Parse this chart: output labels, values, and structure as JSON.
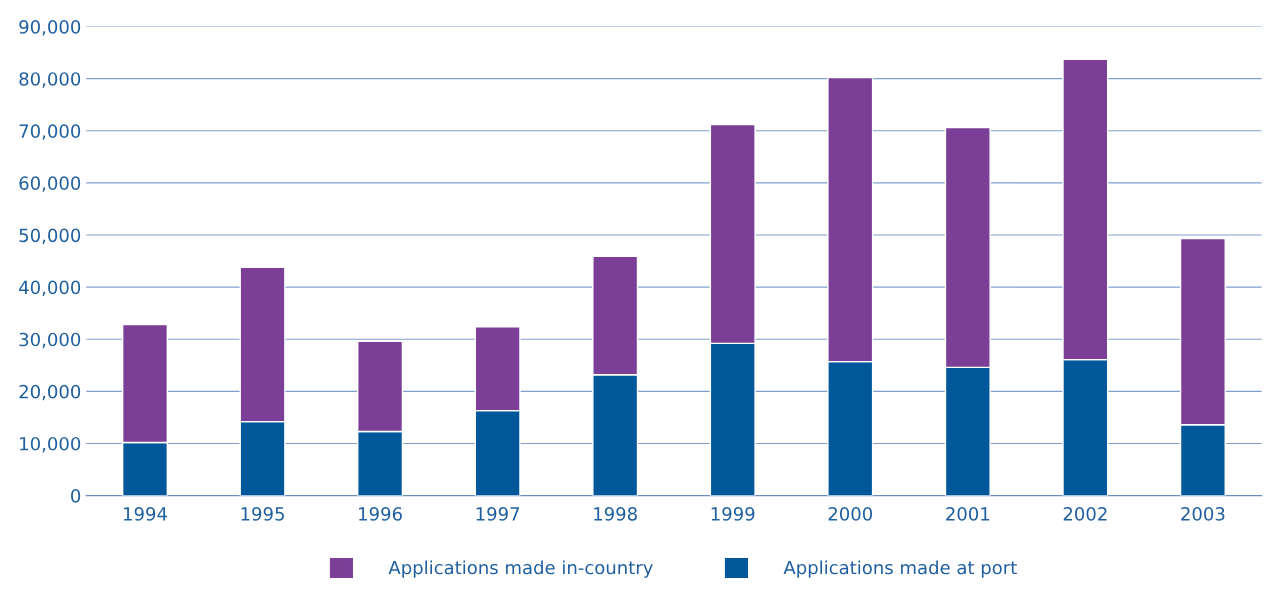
{
  "chart_data": {
    "type": "bar",
    "stacked": true,
    "categories": [
      "1994",
      "1995",
      "1996",
      "1997",
      "1998",
      "1999",
      "2000",
      "2001",
      "2002",
      "2003"
    ],
    "series": [
      {
        "name": "Applications made at port",
        "color": "#00589a",
        "values": [
          10200,
          14200,
          12300,
          16300,
          23200,
          29200,
          25700,
          24600,
          26100,
          13600
        ]
      },
      {
        "name": "Applications made in-country",
        "color": "#7b3f98",
        "values": [
          22600,
          29600,
          17300,
          16100,
          22700,
          42000,
          54500,
          46000,
          57600,
          35700
        ]
      }
    ],
    "ylim": [
      0,
      90000
    ],
    "yticks": [
      0,
      {
        "value": 10000,
        "label": "10,000"
      },
      {
        "value": 20000,
        "label": "20,000"
      },
      {
        "value": 30000,
        "label": "30,000"
      },
      {
        "value": 40000,
        "label": "40,000"
      },
      {
        "value": 50000,
        "label": "50,000"
      },
      {
        "value": 60000,
        "label": "60,000"
      },
      {
        "value": 70000,
        "label": "70,000"
      },
      {
        "value": 80000,
        "label": "80,000"
      },
      {
        "value": 90000,
        "label": "90,000"
      }
    ],
    "grid": "y",
    "legend": "bottom"
  }
}
